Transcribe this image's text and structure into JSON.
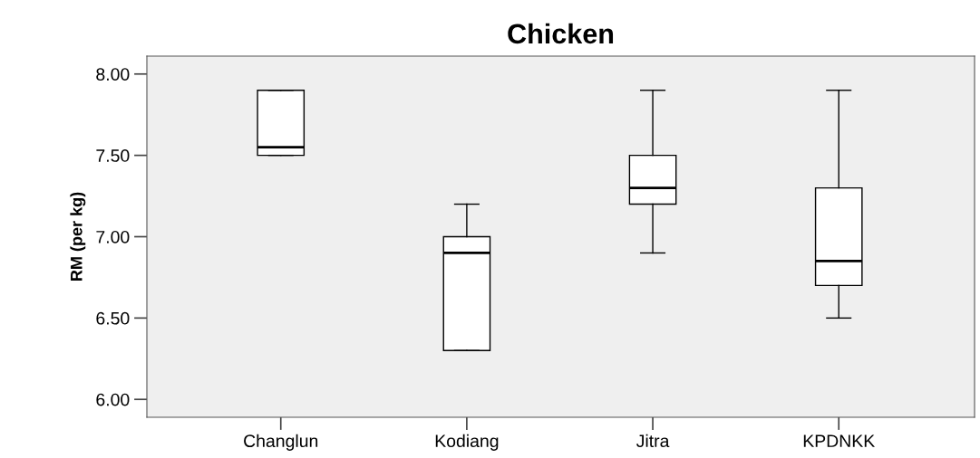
{
  "chart_data": {
    "type": "box",
    "title": "Chicken",
    "ylabel": "RM (per kg)",
    "categories": [
      "Changlun",
      "Kodiang",
      "Jitra",
      "KPDNKK"
    ],
    "boxes": [
      {
        "low": 7.5,
        "q1": 7.5,
        "median": 7.55,
        "q3": 7.9,
        "high": 7.9
      },
      {
        "low": 6.3,
        "q1": 6.3,
        "median": 6.9,
        "q3": 7.0,
        "high": 7.2
      },
      {
        "low": 6.9,
        "q1": 7.2,
        "median": 7.3,
        "q3": 7.5,
        "high": 7.9
      },
      {
        "low": 6.5,
        "q1": 6.7,
        "median": 6.85,
        "q3": 7.3,
        "high": 7.9
      }
    ],
    "ylim": [
      5.89,
      8.11
    ],
    "yticks": [
      {
        "value": 6,
        "label": "6.00"
      },
      {
        "value": 6.5,
        "label": "6.50"
      },
      {
        "value": 7,
        "label": "7.00"
      },
      {
        "value": 7.5,
        "label": "7.50"
      },
      {
        "value": 8,
        "label": "8.00"
      }
    ],
    "grid": false
  }
}
